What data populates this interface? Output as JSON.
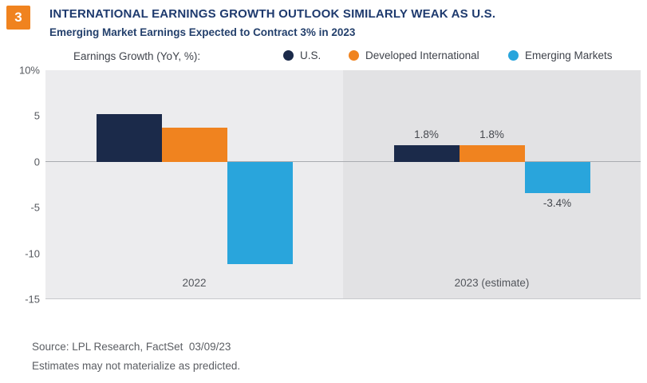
{
  "page": {
    "badge": "3",
    "badge_color": "#F0831F",
    "source_line1": "Source: LPL Research, FactSet  03/09/23",
    "source_line2": "Estimates may not materialize as predicted."
  },
  "chart_data": {
    "type": "bar",
    "title": "INTERNATIONAL EARNINGS GROWTH OUTLOOK SIMILARLY WEAK AS U.S.",
    "subtitle": "Emerging Market Earnings Expected to Contract 3% in 2023",
    "legend_label": "Earnings Growth (YoY, %):",
    "legend_position": "top",
    "unit": "percent",
    "categories": [
      "2022",
      "2023 (estimate)"
    ],
    "series": [
      {
        "name": "U.S.",
        "color": "#1B2A4A",
        "values": [
          5.2,
          1.8
        ],
        "labels": [
          null,
          "1.8%"
        ]
      },
      {
        "name": "Developed International",
        "color": "#F0831F",
        "values": [
          3.7,
          1.8
        ],
        "labels": [
          null,
          "1.8%"
        ]
      },
      {
        "name": "Emerging Markets",
        "color": "#29A5DC",
        "values": [
          -11.2,
          -3.4
        ],
        "labels": [
          null,
          "-3.4%"
        ]
      }
    ],
    "xlabel": "",
    "ylabel": "Earnings Growth (YoY, %)",
    "ylim": [
      -15,
      10
    ],
    "y_ticks": [
      {
        "label": "10%",
        "value": 10
      },
      {
        "label": "5",
        "value": 5
      },
      {
        "label": "0",
        "value": 0
      },
      {
        "label": "-5",
        "value": -5
      },
      {
        "label": "-10",
        "value": -10
      },
      {
        "label": "-15",
        "value": -15
      }
    ],
    "grid": "zero-line-only",
    "plot_bg": [
      "#ECECEE",
      "#E2E2E4"
    ]
  }
}
